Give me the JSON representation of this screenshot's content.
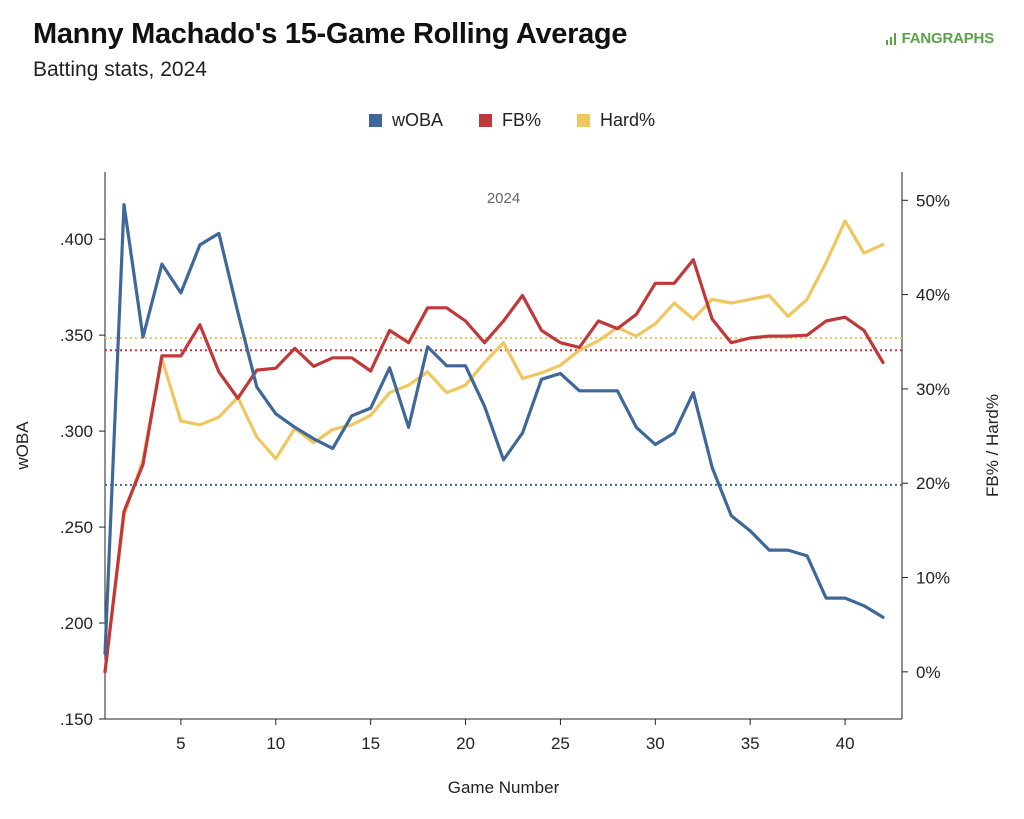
{
  "header": {
    "title": "Manny Machado's 15-Game Rolling Average",
    "subtitle": "Batting stats, 2024",
    "brand": "FANGRAPHS"
  },
  "chart_data": {
    "type": "line",
    "panel_label": "2024",
    "xlabel": "Game Number",
    "ylabel_left": "wOBA",
    "ylabel_right": "FB% / Hard%",
    "x_range": [
      1,
      43
    ],
    "x_ticks": [
      5,
      10,
      15,
      20,
      25,
      30,
      35,
      40
    ],
    "y_left_range": [
      0.15,
      0.435
    ],
    "y_left_ticks": [
      ".150",
      ".200",
      ".250",
      ".300",
      ".350",
      ".400"
    ],
    "y_left_tick_values": [
      0.15,
      0.2,
      0.25,
      0.3,
      0.35,
      0.4
    ],
    "y_right_range": [
      -5,
      53
    ],
    "y_right_ticks": [
      "0%",
      "10%",
      "20%",
      "30%",
      "40%",
      "50%"
    ],
    "y_right_tick_values": [
      0,
      10,
      20,
      30,
      40,
      50
    ],
    "legend_position": "top-center",
    "grid": false,
    "x": [
      1,
      2,
      3,
      4,
      5,
      6,
      7,
      8,
      9,
      10,
      11,
      12,
      13,
      14,
      15,
      16,
      17,
      18,
      19,
      20,
      21,
      22,
      23,
      24,
      25,
      26,
      27,
      28,
      29,
      30,
      31,
      32,
      33,
      34,
      35,
      36,
      37,
      38,
      39,
      40,
      41,
      42
    ],
    "series": [
      {
        "name": "wOBA",
        "axis": "left",
        "color": "#3f6899",
        "values": [
          0.184,
          0.418,
          0.349,
          0.387,
          0.372,
          0.397,
          0.403,
          0.362,
          0.323,
          0.309,
          0.302,
          0.296,
          0.291,
          0.308,
          0.312,
          0.333,
          0.302,
          0.344,
          0.334,
          0.334,
          0.313,
          0.285,
          0.299,
          0.327,
          0.33,
          0.321,
          0.321,
          0.321,
          0.302,
          0.293,
          0.299,
          0.32,
          0.281,
          0.256,
          0.248,
          0.238,
          0.238,
          0.235,
          0.213,
          0.213,
          0.209,
          0.203
        ]
      },
      {
        "name": "FB%",
        "axis": "right",
        "color": "#c0383a",
        "values": [
          0,
          17,
          22,
          33.5,
          33.5,
          36.8,
          31.8,
          29,
          32,
          32.2,
          34.3,
          32.4,
          33.3,
          33.3,
          31.9,
          36.2,
          34.9,
          38.6,
          38.6,
          37.2,
          34.9,
          37.2,
          39.9,
          36.2,
          34.9,
          34.4,
          37.2,
          36.4,
          37.9,
          41.2,
          41.2,
          43.7,
          37.4,
          34.9,
          35.4,
          35.6,
          35.6,
          35.7,
          37.2,
          37.6,
          36.2,
          32.8
        ]
      },
      {
        "name": "Hard%",
        "axis": "right",
        "color": "#efc75e",
        "values": [
          0,
          16.6,
          22.5,
          33.2,
          26.6,
          26.2,
          27,
          29.1,
          24.9,
          22.6,
          25.8,
          24.3,
          25.7,
          26.2,
          27.2,
          29.6,
          30.4,
          31.8,
          29.6,
          30.4,
          32.8,
          34.9,
          31.1,
          31.7,
          32.5,
          34.1,
          35.1,
          36.5,
          35.6,
          36.9,
          39.1,
          37.4,
          39.5,
          39.1,
          39.5,
          39.9,
          37.7,
          39.5,
          43.4,
          47.8,
          44.4,
          45.3
        ]
      }
    ],
    "reference_lines": [
      {
        "series": "wOBA",
        "axis": "left",
        "value": 0.272,
        "color": "#3f6899"
      },
      {
        "series": "FB%",
        "axis": "right",
        "value": 34.1,
        "color": "#c0383a"
      },
      {
        "series": "Hard%",
        "axis": "right",
        "value": 35.4,
        "color": "#efc75e"
      }
    ]
  }
}
